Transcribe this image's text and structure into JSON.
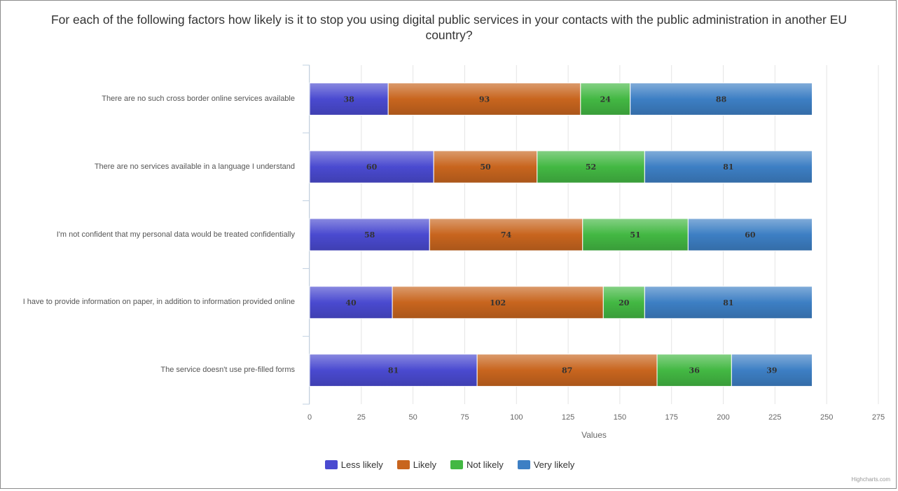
{
  "chart_data": {
    "type": "bar",
    "orientation": "horizontal",
    "stacked": true,
    "title": "For each of the following factors how likely is it to stop you using digital public services in your contacts with the public administration in another EU country?",
    "xlabel": "Values",
    "xlim": [
      0,
      275
    ],
    "xticks": [
      0,
      25,
      50,
      75,
      100,
      125,
      150,
      175,
      200,
      225,
      250,
      275
    ],
    "grid": true,
    "legend_position": "bottom",
    "categories": [
      "There are no such cross border online services available",
      "There are no services available in a language I understand",
      "I'm not confident that my personal data would be treated confidentially",
      "I have to provide information on paper, in addition to information provided online",
      "The service doesn't use pre-filled forms"
    ],
    "series": [
      {
        "name": "Less likely",
        "color": "#4a4ad0",
        "values": [
          38,
          60,
          58,
          40,
          81
        ]
      },
      {
        "name": "Likely",
        "color": "#c8651e",
        "values": [
          93,
          50,
          74,
          102,
          87
        ]
      },
      {
        "name": "Not likely",
        "color": "#43b843",
        "values": [
          24,
          52,
          51,
          20,
          36
        ]
      },
      {
        "name": "Very likely",
        "color": "#3d7fc4",
        "values": [
          88,
          81,
          60,
          81,
          39
        ]
      }
    ]
  },
  "credits": "Highcharts.com"
}
